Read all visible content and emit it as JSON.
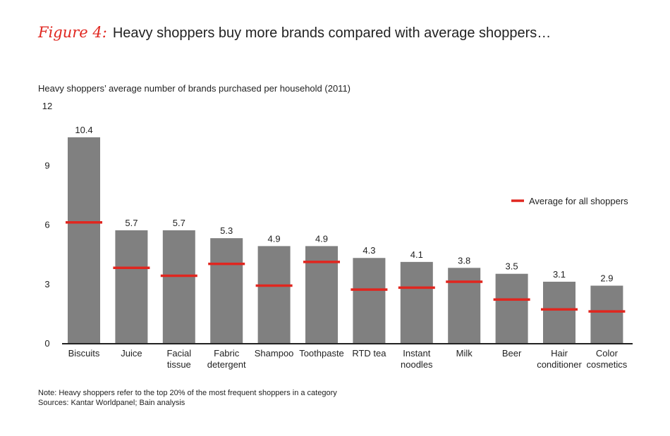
{
  "figure": {
    "label": "Figure 4:",
    "title": "Heavy shoppers buy more brands compared with average shoppers…"
  },
  "notes": {
    "note": "Note: Heavy shoppers refer to the top 20% of the most frequent shoppers in a category",
    "sources": "Sources: Kantar Worldpanel; Bain analysis"
  },
  "chart_data": {
    "type": "bar",
    "title": "",
    "ylabel": "Heavy shoppers’ average number of brands purchased per household (2011)",
    "xlabel": "",
    "ylim": [
      0,
      12
    ],
    "yticks": [
      0,
      3,
      6,
      9,
      12
    ],
    "grid": false,
    "legend_position": "right",
    "categories": [
      [
        "Biscuits"
      ],
      [
        "Juice"
      ],
      [
        "Facial",
        "tissue"
      ],
      [
        "Fabric",
        "detergent"
      ],
      [
        "Shampoo"
      ],
      [
        "Toothpaste"
      ],
      [
        "RTD tea"
      ],
      [
        "Instant",
        "noodles"
      ],
      [
        "Milk"
      ],
      [
        "Beer"
      ],
      [
        "Hair",
        "conditioner"
      ],
      [
        "Color",
        "cosmetics"
      ]
    ],
    "series": [
      {
        "values": [
          10.4,
          5.7,
          5.7,
          5.3,
          4.9,
          4.9,
          4.3,
          4.1,
          3.8,
          3.5,
          3.1,
          2.9
        ],
        "color": "#808080"
      },
      {
        "name": "Average for all shoppers",
        "values": [
          6.1,
          3.8,
          3.4,
          4.0,
          2.9,
          4.1,
          2.7,
          2.8,
          3.1,
          2.2,
          1.7,
          1.6
        ],
        "color": "#e0261f"
      }
    ],
    "data_labels": [
      "10.4",
      "5.7",
      "5.7",
      "5.3",
      "4.9",
      "4.9",
      "4.3",
      "4.1",
      "3.8",
      "3.5",
      "3.1",
      "2.9"
    ]
  }
}
